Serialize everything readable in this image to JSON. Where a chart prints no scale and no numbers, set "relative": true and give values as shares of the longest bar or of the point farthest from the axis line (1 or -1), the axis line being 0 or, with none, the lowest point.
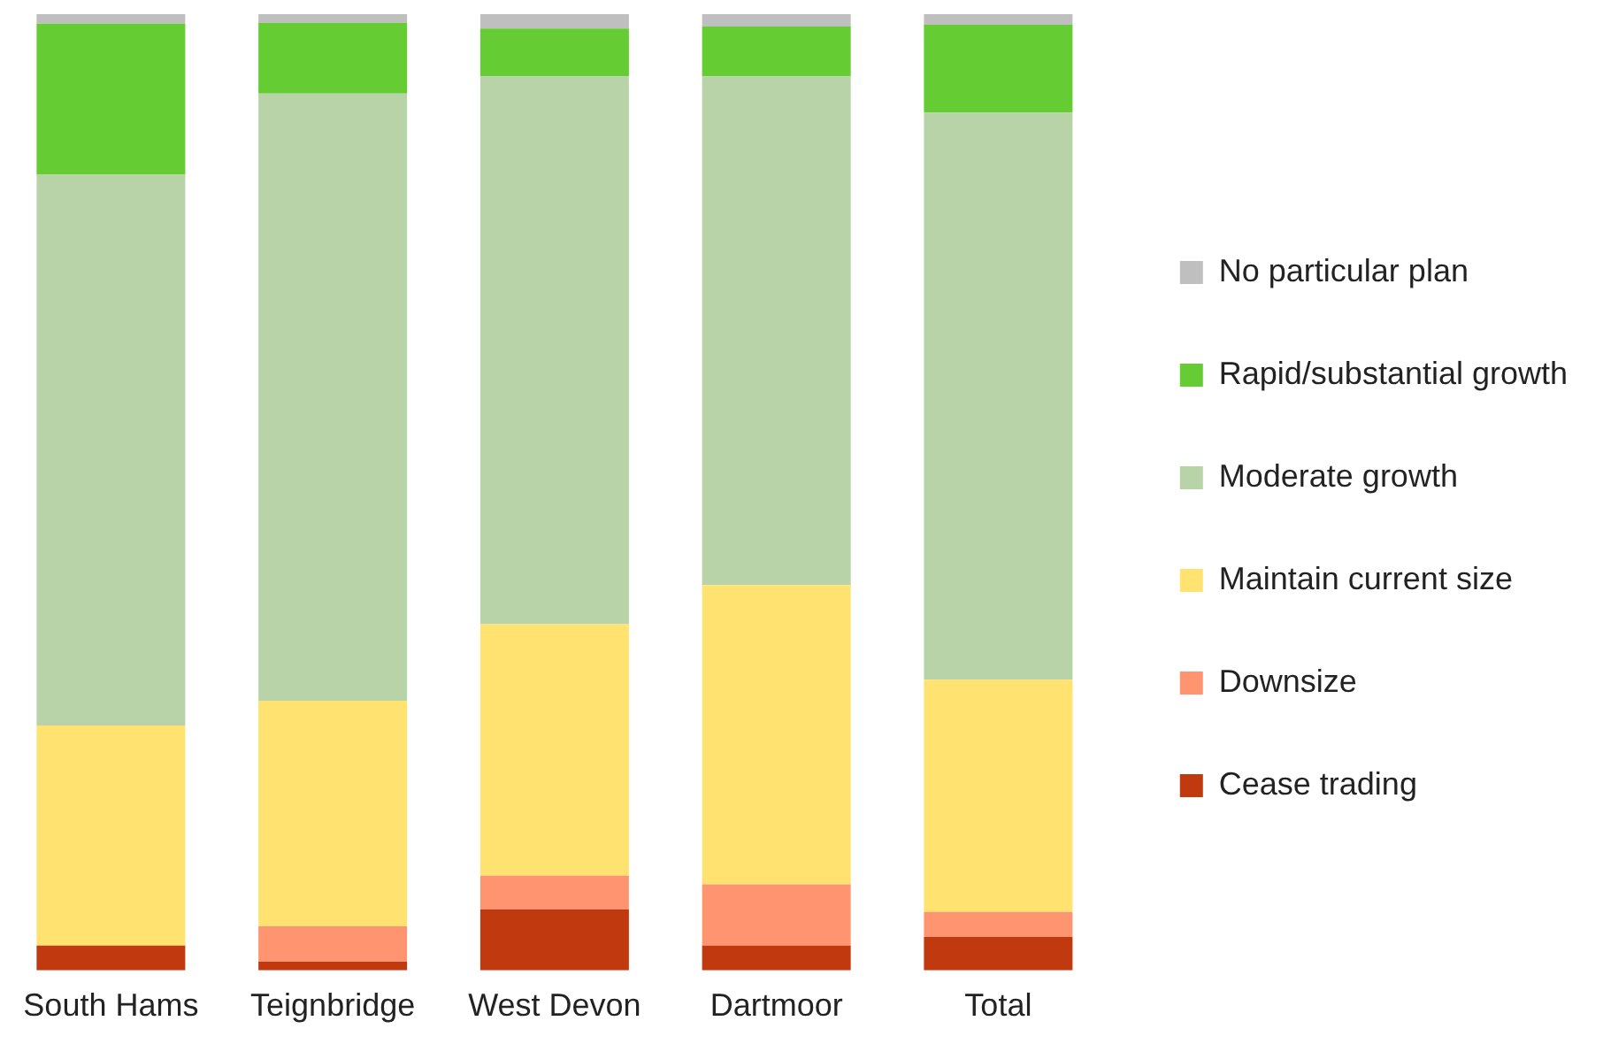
{
  "chart_data": {
    "type": "bar",
    "stacked": true,
    "relative": true,
    "legend": "right",
    "grid": false,
    "categories": [
      "South Hams",
      "Teignbridge",
      "West Devon",
      "Dartmoor",
      "Total"
    ],
    "series": [
      {
        "name": "Cease trading",
        "color": "#c0390f",
        "values": [
          0.026,
          0.009,
          0.064,
          0.026,
          0.035
        ]
      },
      {
        "name": "Downsize",
        "color": "#ff9570",
        "values": [
          0,
          0.037,
          0.035,
          0.064,
          0.026
        ]
      },
      {
        "name": "Maintain current size",
        "color": "#ffe270",
        "values": [
          0.23,
          0.236,
          0.263,
          0.313,
          0.243
        ]
      },
      {
        "name": "Moderate growth",
        "color": "#b9d3a9",
        "values": [
          0.576,
          0.635,
          0.573,
          0.532,
          0.593
        ]
      },
      {
        "name": "Rapid/substantial growth",
        "color": "#66cc33",
        "values": [
          0.158,
          0.074,
          0.05,
          0.052,
          0.092
        ]
      },
      {
        "name": "No particular plan",
        "color": "#bfbfbf",
        "values": [
          0.01,
          0.009,
          0.015,
          0.013,
          0.011
        ]
      }
    ]
  }
}
